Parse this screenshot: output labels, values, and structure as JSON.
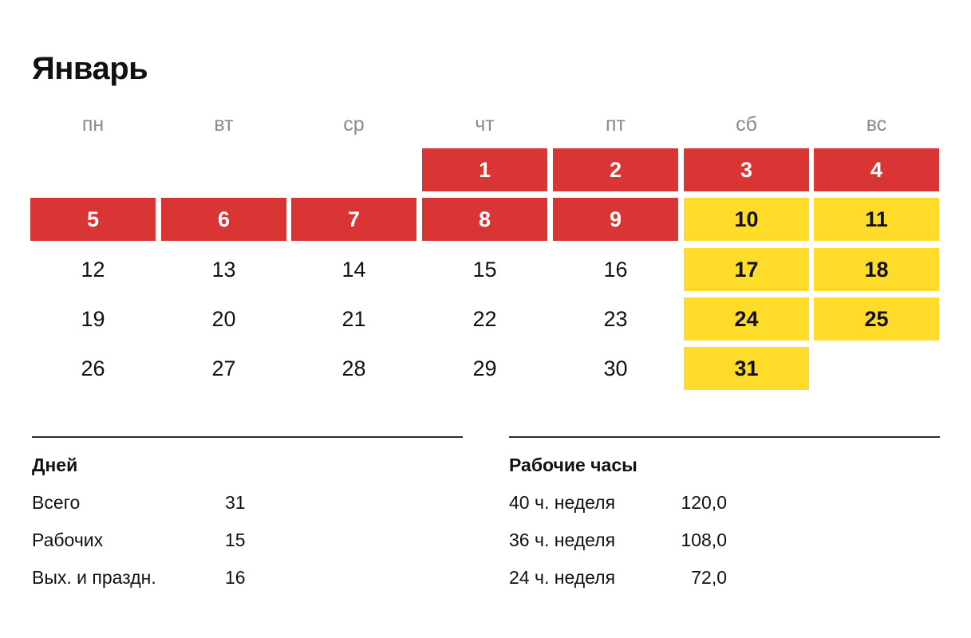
{
  "title": "Январь",
  "weekdays": [
    "пн",
    "вт",
    "ср",
    "чт",
    "пт",
    "сб",
    "вс"
  ],
  "weeks": [
    [
      null,
      null,
      null,
      {
        "day": "1",
        "type": "holiday"
      },
      {
        "day": "2",
        "type": "holiday"
      },
      {
        "day": "3",
        "type": "holiday"
      },
      {
        "day": "4",
        "type": "holiday"
      }
    ],
    [
      {
        "day": "5",
        "type": "holiday"
      },
      {
        "day": "6",
        "type": "holiday"
      },
      {
        "day": "7",
        "type": "holiday"
      },
      {
        "day": "8",
        "type": "holiday"
      },
      {
        "day": "9",
        "type": "holiday"
      },
      {
        "day": "10",
        "type": "weekend"
      },
      {
        "day": "11",
        "type": "weekend"
      }
    ],
    [
      {
        "day": "12",
        "type": "workday"
      },
      {
        "day": "13",
        "type": "workday"
      },
      {
        "day": "14",
        "type": "workday"
      },
      {
        "day": "15",
        "type": "workday"
      },
      {
        "day": "16",
        "type": "workday"
      },
      {
        "day": "17",
        "type": "weekend"
      },
      {
        "day": "18",
        "type": "weekend"
      }
    ],
    [
      {
        "day": "19",
        "type": "workday"
      },
      {
        "day": "20",
        "type": "workday"
      },
      {
        "day": "21",
        "type": "workday"
      },
      {
        "day": "22",
        "type": "workday"
      },
      {
        "day": "23",
        "type": "workday"
      },
      {
        "day": "24",
        "type": "weekend"
      },
      {
        "day": "25",
        "type": "weekend"
      }
    ],
    [
      {
        "day": "26",
        "type": "workday"
      },
      {
        "day": "27",
        "type": "workday"
      },
      {
        "day": "28",
        "type": "workday"
      },
      {
        "day": "29",
        "type": "workday"
      },
      {
        "day": "30",
        "type": "workday"
      },
      {
        "day": "31",
        "type": "weekend"
      },
      null
    ]
  ],
  "colors": {
    "holiday": "#d93535",
    "weekend": "#ffdc2a",
    "weekday_label": "#8a8a8a",
    "text": "#111111"
  },
  "days_stats": {
    "heading": "Дней",
    "rows": [
      {
        "label": "Всего",
        "value": "31"
      },
      {
        "label": "Рабочих",
        "value": "15"
      },
      {
        "label": "Вых. и праздн.",
        "value": "16"
      }
    ]
  },
  "hours_stats": {
    "heading": "Рабочие часы",
    "rows": [
      {
        "label": "40 ч. неделя",
        "value": "120,0"
      },
      {
        "label": "36 ч. неделя",
        "value": "108,0"
      },
      {
        "label": "24 ч. неделя",
        "value": "72,0"
      }
    ]
  }
}
